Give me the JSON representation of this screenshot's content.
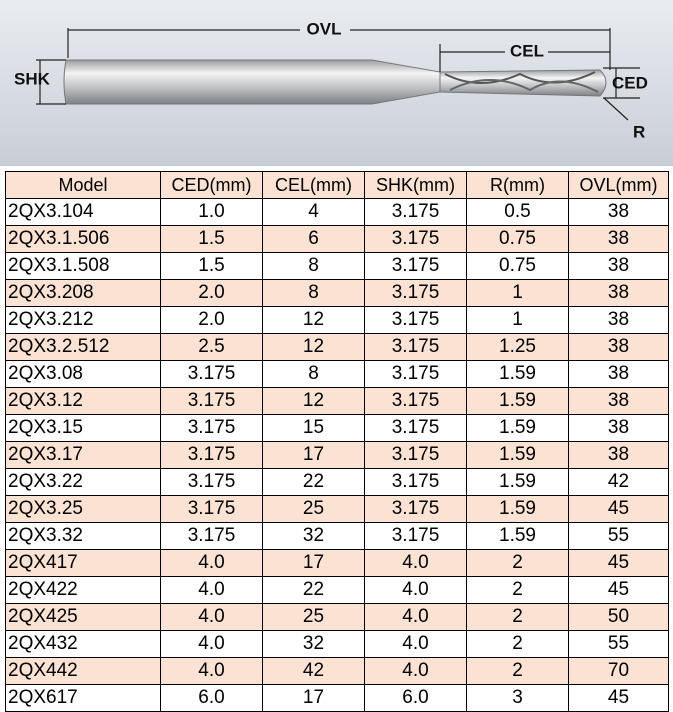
{
  "diagram": {
    "labels": {
      "ovl": "OVL",
      "cel": "CEL",
      "shk": "SHK",
      "ced": "CED",
      "r": "R"
    }
  },
  "table": {
    "header": [
      "Model",
      "CED(mm)",
      "CEL(mm)",
      "SHK(mm)",
      "R(mm)",
      "OVL(mm)"
    ],
    "rows": [
      [
        "2QX3.104",
        "1.0",
        "4",
        "3.175",
        "0.5",
        "38"
      ],
      [
        "2QX3.1.506",
        "1.5",
        "6",
        "3.175",
        "0.75",
        "38"
      ],
      [
        "2QX3.1.508",
        "1.5",
        "8",
        "3.175",
        "0.75",
        "38"
      ],
      [
        "2QX3.208",
        "2.0",
        "8",
        "3.175",
        "1",
        "38"
      ],
      [
        "2QX3.212",
        "2.0",
        "12",
        "3.175",
        "1",
        "38"
      ],
      [
        "2QX3.2.512",
        "2.5",
        "12",
        "3.175",
        "1.25",
        "38"
      ],
      [
        "2QX3.08",
        "3.175",
        "8",
        "3.175",
        "1.59",
        "38"
      ],
      [
        "2QX3.12",
        "3.175",
        "12",
        "3.175",
        "1.59",
        "38"
      ],
      [
        "2QX3.15",
        "3.175",
        "15",
        "3.175",
        "1.59",
        "38"
      ],
      [
        "2QX3.17",
        "3.175",
        "17",
        "3.175",
        "1.59",
        "38"
      ],
      [
        "2QX3.22",
        "3.175",
        "22",
        "3.175",
        "1.59",
        "42"
      ],
      [
        "2QX3.25",
        "3.175",
        "25",
        "3.175",
        "1.59",
        "45"
      ],
      [
        "2QX3.32",
        "3.175",
        "32",
        "3.175",
        "1.59",
        "55"
      ],
      [
        "2QX417",
        "4.0",
        "17",
        "4.0",
        "2",
        "45"
      ],
      [
        "2QX422",
        "4.0",
        "22",
        "4.0",
        "2",
        "45"
      ],
      [
        "2QX425",
        "4.0",
        "25",
        "4.0",
        "2",
        "50"
      ],
      [
        "2QX432",
        "4.0",
        "32",
        "4.0",
        "2",
        "55"
      ],
      [
        "2QX442",
        "4.0",
        "42",
        "4.0",
        "2",
        "70"
      ],
      [
        "2QX617",
        "6.0",
        "17",
        "6.0",
        "3",
        "45"
      ]
    ]
  }
}
